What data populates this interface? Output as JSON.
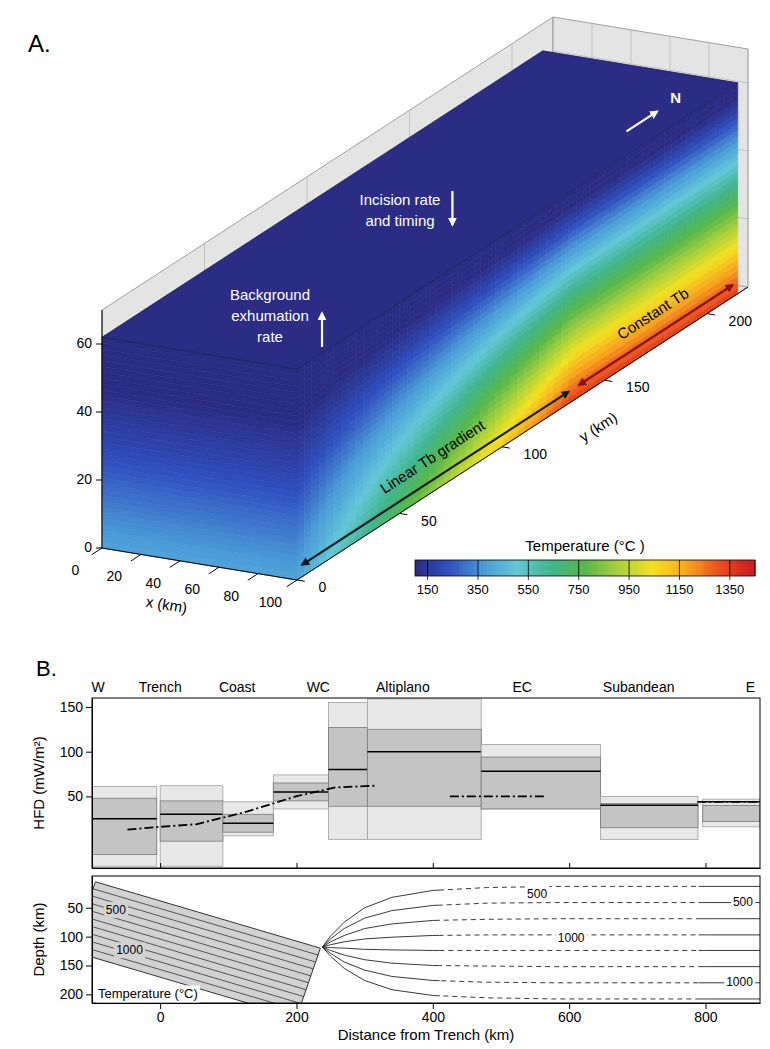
{
  "chart_data": [
    {
      "type": "block_diagram",
      "panel": "A.",
      "xlabel": "x (km)",
      "ylabel": "y (km)",
      "xlim": [
        0,
        100
      ],
      "ylim": [
        0,
        220
      ],
      "zlim": [
        0,
        70
      ],
      "xticks": [
        0,
        20,
        40,
        60,
        80,
        100
      ],
      "yticks": [
        0,
        50,
        100,
        150,
        200
      ],
      "zticks": [
        0,
        20,
        40,
        60
      ],
      "grid": true,
      "block": {
        "x": [
          0,
          100
        ],
        "y": [
          0,
          215
        ],
        "z": [
          0,
          62
        ]
      },
      "surface_temperature": 0,
      "basal_temperature": {
        "y": [
          0,
          135,
          215
        ],
        "values": [
          400,
          1350,
          1350
        ]
      },
      "zones": [
        {
          "text": "Linear Tb gradient",
          "color": "#1a1a1a"
        },
        {
          "text": "Constant Tb",
          "color": "#8b1010"
        }
      ],
      "annotations": [
        {
          "text": "Incision rate and timing",
          "marker": "arrow-down"
        },
        {
          "text": "Background exhumation rate",
          "marker": "arrow-up"
        },
        {
          "text": "N",
          "marker": "arrow-north"
        }
      ],
      "colorbar": {
        "title": "Temperature (°C )",
        "range": [
          100,
          1450
        ],
        "ticks": [
          150,
          350,
          550,
          750,
          950,
          1150,
          1350
        ],
        "colors": [
          "#2b2c84",
          "#2f4fbf",
          "#4a9ad8",
          "#62c7d6",
          "#3fb58a",
          "#55b848",
          "#a9d13a",
          "#f3e21e",
          "#f7a51d",
          "#ea4a1e",
          "#c8161e"
        ]
      }
    },
    {
      "type": "box",
      "panel": "B.",
      "ylabel": "HFD (mW/m²)",
      "xlim": [
        -100,
        880
      ],
      "ylim": [
        -30,
        160
      ],
      "xticks": [
        0,
        200,
        400,
        600,
        800
      ],
      "yticks": [
        50,
        100,
        150
      ],
      "tick_labels": "y",
      "region_labels": {
        "x": [
          -91,
          0,
          113,
          232,
          356,
          531,
          702,
          866
        ],
        "labels": [
          "W",
          "Trench",
          "Coast",
          "WC",
          "Altiplano",
          "EC",
          "Subandean",
          "E"
        ]
      },
      "boxes": [
        {
          "x": [
            -100,
            -5
          ],
          "range": [
            -28,
            61
          ],
          "iqr": [
            -15,
            48
          ],
          "median": 25
        },
        {
          "x": [
            0,
            92
          ],
          "range": [
            -28,
            62
          ],
          "iqr": [
            0,
            45
          ],
          "median": 30
        },
        {
          "x": [
            92,
            166
          ],
          "range": [
            6,
            44
          ],
          "iqr": [
            10,
            30
          ],
          "median": 20
        },
        {
          "x": [
            166,
            247
          ],
          "range": [
            36,
            74
          ],
          "iqr": [
            45,
            65
          ],
          "median": 55
        },
        {
          "x": [
            247,
            304
          ],
          "range": [
            2,
            155
          ],
          "iqr": [
            39,
            127
          ],
          "median": 80
        },
        {
          "x": [
            304,
            471
          ],
          "range": [
            2,
            159
          ],
          "iqr": [
            39,
            125
          ],
          "median": 100
        },
        {
          "x": [
            471,
            646
          ],
          "range": [
            36,
            108
          ],
          "iqr": [
            36,
            94
          ],
          "median": 78
        },
        {
          "x": [
            646,
            789
          ],
          "range": [
            2,
            50
          ],
          "iqr": [
            15,
            42
          ],
          "median": 40
        },
        {
          "x": [
            796,
            880
          ],
          "range": [
            16,
            47
          ],
          "iqr": [
            22,
            40
          ],
          "median": 44
        }
      ],
      "model": {
        "x": [
          -48,
          0,
          54,
          127,
          199,
          257,
          316,
          320,
          425,
          563,
          600,
          788,
          880
        ],
        "values": [
          13,
          16,
          19,
          33,
          50,
          60,
          62,
          null,
          50,
          50,
          null,
          44,
          44
        ],
        "line_style": "dashdot"
      }
    },
    {
      "type": "cross_section",
      "ylabel": "Depth (km)",
      "xlabel": "Distance from Trench (km)",
      "xlim": [
        -100,
        880
      ],
      "ylim": [
        -5,
        215
      ],
      "xticks": [
        0,
        200,
        400,
        600,
        800
      ],
      "yticks": [
        50,
        100,
        150,
        200
      ],
      "slab": {
        "x": [
          -95,
          235,
          200,
          -130
        ],
        "depth": [
          5,
          120,
          240,
          125
        ],
        "isotherms": [
          {
            "x": [
              -99,
              232
            ],
            "depth": [
              17,
              132
            ]
          },
          {
            "x": [
              -102,
              228
            ],
            "depth": [
              29,
              144
            ]
          },
          {
            "x": [
              -106,
              225
            ],
            "depth": [
              41,
              156
            ]
          },
          {
            "x": [
              -109,
              221
            ],
            "depth": [
              53,
              168
            ]
          },
          {
            "x": [
              -113,
              218
            ],
            "depth": [
              65,
              180
            ]
          },
          {
            "x": [
              -116,
              214
            ],
            "depth": [
              77,
              192
            ]
          },
          {
            "x": [
              -120,
              211
            ],
            "depth": [
              89,
              204
            ]
          },
          {
            "x": [
              -123,
              207
            ],
            "depth": [
              101,
              216
            ]
          },
          {
            "x": [
              -127,
              204
            ],
            "depth": [
              113,
              228
            ]
          }
        ]
      },
      "isotherms": {
        "x": [
          238,
          250,
          270,
          300,
          340,
          400,
          480,
          580,
          680,
          800,
          880
        ],
        "dashed_x": [
          410,
          790
        ],
        "series": [
          {
            "values": [
              118,
              99,
              75,
              50,
              32,
              20,
              15,
              13,
              13,
              13,
              13
            ]
          },
          {
            "values": [
              118,
              104,
              86,
              68,
              55,
              46,
              42,
              41,
              41,
              41,
              41
            ]
          },
          {
            "values": [
              118,
              109,
              98,
              86,
              78,
              72,
              70,
              69,
              69,
              69,
              69
            ]
          },
          {
            "values": [
              118,
              114,
              109,
              104,
              101,
              98,
              97,
              97,
              97,
              97,
              97
            ]
          },
          {
            "values": [
              118,
              119,
              120,
              122,
              123,
              124,
              124,
              124,
              124,
              124,
              124
            ]
          },
          {
            "values": [
              118,
              124,
              132,
              140,
              146,
              150,
              151,
              152,
              152,
              152,
              152
            ]
          },
          {
            "values": [
              118,
              129,
              144,
              158,
              169,
              176,
              179,
              180,
              180,
              180,
              180
            ]
          },
          {
            "values": [
              118,
              134,
              155,
              176,
              192,
              202,
              206,
              208,
              208,
              208,
              208
            ]
          }
        ]
      },
      "labels": [
        {
          "text": "500",
          "x": -65,
          "depth": 55
        },
        {
          "text": "1000",
          "x": -45,
          "depth": 125
        },
        {
          "text": "500",
          "x": 553,
          "depth": 27
        },
        {
          "text": "1000",
          "x": 603,
          "depth": 103
        },
        {
          "text": "500",
          "x": 855,
          "depth": 41
        },
        {
          "text": "1000",
          "x": 850,
          "depth": 180
        }
      ],
      "annotation": "Temperature (°C)"
    }
  ]
}
